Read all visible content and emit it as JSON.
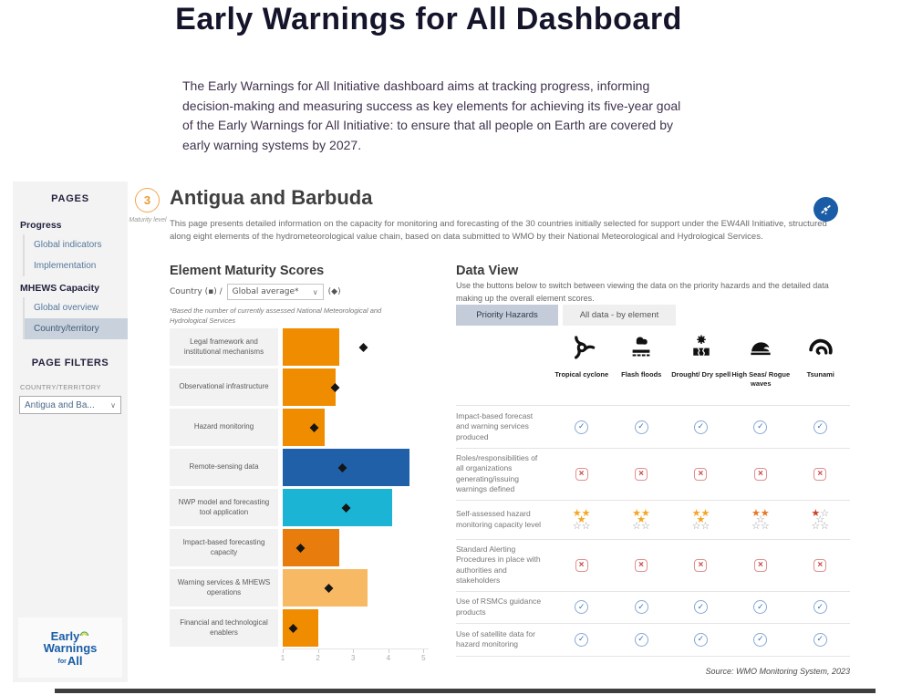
{
  "page": {
    "title": "Early Warnings for All Dashboard",
    "intro": "The Early Warnings for All Initiative dashboard aims at tracking progress, informing decision-making and measuring success as key elements for achieving its five-year goal of the Early Warnings for All Initiative: to ensure that all people on Earth are covered by early warning systems by 2027."
  },
  "sidebar": {
    "pages_header": "PAGES",
    "sections": [
      {
        "title": "Progress",
        "items": [
          {
            "label": "Global indicators",
            "active": false
          },
          {
            "label": "Implementation",
            "active": false
          }
        ]
      },
      {
        "title": "MHEWS Capacity",
        "items": [
          {
            "label": "Global overview",
            "active": false
          },
          {
            "label": "Country/territory",
            "active": true
          }
        ]
      }
    ],
    "filters_header": "PAGE FILTERS",
    "filter_label": "COUNTRY/TERRITORY",
    "filter_value": "Antigua and Ba...",
    "logo": {
      "line1": "Early",
      "line2": "Warnings",
      "line3_small": "for",
      "line3": "All"
    }
  },
  "header": {
    "maturity_value": "3",
    "maturity_label": "Maturity level",
    "country": "Antigua and Barbuda",
    "description": "This page presents detailed information on the capacity for monitoring and forecasting of the 30 countries initially selected for support under the EW4All Initiative, structured along eight elements of the hydrometeorological value chain, based on data submitted to WMO by their National Meteorological and Hydrological Services."
  },
  "maturity_chart": {
    "title": "Element Maturity Scores",
    "country_label": "Country (▪) /",
    "dropdown_value": "Global average*",
    "marker_label": "(◆)",
    "footnote": "*Based the number of currently assessed National Meteorological and Hydrological Services"
  },
  "chart_data": {
    "type": "bar",
    "orientation": "horizontal",
    "title": "Element Maturity Scores",
    "categories": [
      "Legal framework and institutional mechanisms",
      "Observational infrastructure",
      "Hazard monitoring",
      "Remote-sensing data",
      "NWP model and forecasting tool application",
      "Impact-based forecasting capacity",
      "Warning services & MHEWS operations",
      "Financial and technological enablers"
    ],
    "series": [
      {
        "name": "Country",
        "marker": "bar",
        "values": [
          2.6,
          2.5,
          2.2,
          4.6,
          4.1,
          2.6,
          3.4,
          2.0
        ],
        "bar_colors": [
          "#F08C00",
          "#F08C00",
          "#F08C00",
          "#2060A8",
          "#1CB4D4",
          "#E87D0E",
          "#F7B964",
          "#F08C00"
        ]
      },
      {
        "name": "Global average",
        "marker": "diamond",
        "values": [
          3.3,
          2.5,
          1.9,
          2.7,
          2.8,
          1.5,
          2.3,
          1.3
        ],
        "color": "#151515"
      }
    ],
    "xlim": [
      1,
      5
    ],
    "xticks": [
      1,
      2,
      3,
      4,
      5
    ],
    "grid": false,
    "legend_position": "above-chart"
  },
  "data_view": {
    "title": "Data View",
    "description": "Use the buttons below to switch between viewing the data on the priority hazards and the detailed data making up the overall element scores.",
    "buttons": [
      {
        "label": "Priority Hazards",
        "active": true
      },
      {
        "label": "All data - by element",
        "active": false
      }
    ],
    "hazards": [
      {
        "name": "Tropical cyclone",
        "icon": "cyclone-icon"
      },
      {
        "name": "Flash floods",
        "icon": "flood-icon"
      },
      {
        "name": "Drought/ Dry spell",
        "icon": "drought-icon"
      },
      {
        "name": "High Seas/ Rogue waves",
        "icon": "wave-icon"
      },
      {
        "name": "Tsunami",
        "icon": "tsunami-icon"
      }
    ],
    "rows": [
      {
        "label": "Impact-based forecast and warning services produced",
        "type": "icons",
        "values": [
          "check",
          "check",
          "check",
          "check",
          "check"
        ]
      },
      {
        "label": "Roles/responsibilities of all organizations generating/issuing warnings defined",
        "type": "icons",
        "values": [
          "cross",
          "cross",
          "cross",
          "cross",
          "cross"
        ]
      },
      {
        "label": "Self-assessed hazard monitoring capacity level",
        "type": "stars",
        "stars": [
          {
            "filled": 3,
            "max": 5,
            "color": "#F5A623"
          },
          {
            "filled": 3,
            "max": 5,
            "color": "#F5A623"
          },
          {
            "filled": 3,
            "max": 5,
            "color": "#F5A623"
          },
          {
            "filled": 2,
            "max": 5,
            "color": "#E87722"
          },
          {
            "filled": 1,
            "max": 5,
            "color": "#CC4125"
          }
        ]
      },
      {
        "label": "Standard Alerting Procedures in place with authorities and stakeholders",
        "type": "icons",
        "values": [
          "cross",
          "cross",
          "cross",
          "cross",
          "cross"
        ]
      },
      {
        "label": "Use of RSMCs guidance products",
        "type": "icons",
        "values": [
          "check",
          "check",
          "check",
          "check",
          "check"
        ]
      },
      {
        "label": "Use of satellite data for hazard monitoring",
        "type": "icons",
        "values": [
          "check",
          "check",
          "check",
          "check",
          "check"
        ]
      }
    ],
    "source": "Source: WMO Monitoring System, 2023"
  },
  "colors": {
    "accent_orange": "#F08C00",
    "accent_dark_blue": "#2060A8",
    "accent_cyan": "#1CB4D4",
    "accent_light_orange": "#F7B964",
    "check_blue": "#3F6FB5",
    "cross_red": "#CC4444",
    "sidebar_highlight": "#C9D2DC",
    "button_active": "#C3CCD8"
  }
}
